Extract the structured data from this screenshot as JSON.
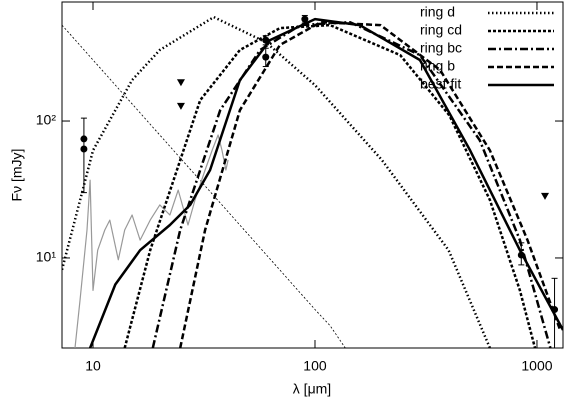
{
  "chart_data": {
    "type": "line",
    "xlabel": "λ [μm]",
    "ylabel": "Fν [mJy]",
    "xscale": "log",
    "yscale": "log",
    "xlim": [
      7.25,
      1310
    ],
    "ylim": [
      2.2,
      740
    ],
    "xticks": [
      10,
      100,
      1000
    ],
    "yticks": [
      {
        "value": 10,
        "label": "10¹"
      },
      {
        "value": 100,
        "label": "10²"
      }
    ],
    "legend": "upper right",
    "series": [
      {
        "name": "ring d",
        "color": "#000000",
        "dash": "1.5 2.5",
        "width": 2.5,
        "x": [
          7.25,
          10,
          15,
          20,
          35,
          60,
          100,
          200,
          400,
          614
        ],
        "values": [
          8.2,
          61,
          199,
          330,
          574,
          377,
          183,
          52,
          11.4,
          2.2
        ]
      },
      {
        "name": "ring cd",
        "color": "#000000",
        "dash": "3 2",
        "width": 2.5,
        "x": [
          13.9,
          18.1,
          30.4,
          45.9,
          69.5,
          117,
          242,
          403,
          614,
          838,
          980
        ],
        "values": [
          2.2,
          11.4,
          142,
          330,
          477,
          502,
          303,
          110,
          26.5,
          5.8,
          2.2
        ]
      },
      {
        "name": "ring bc",
        "color": "#000000",
        "dash": "8 3 2 3",
        "width": 2.5,
        "x": [
          18.6,
          24.7,
          37.4,
          56.6,
          86,
          144,
          297,
          552,
          838,
          1150
        ],
        "values": [
          2.2,
          16,
          120,
          330,
          502,
          527,
          303,
          72.6,
          13.5,
          2.2
        ]
      },
      {
        "name": "ring b",
        "color": "#000000",
        "dash": "6 3",
        "width": 2.5,
        "x": [
          24.7,
          32,
          45.9,
          69.5,
          106,
          197,
          366,
          614,
          906,
          1270
        ],
        "values": [
          2.2,
          16,
          120,
          359,
          527,
          502,
          236,
          61,
          13.5,
          3
        ]
      },
      {
        "name": "best fit",
        "color": "#000000",
        "dash": "none",
        "width": 2.5,
        "x": [
          9.7,
          12.6,
          16.3,
          22.2,
          27.4,
          33.7,
          45.9,
          62.7,
          100,
          159,
          297,
          500,
          838,
          1310
        ],
        "values": [
          2.2,
          6.4,
          11.4,
          17.4,
          24.4,
          43.9,
          199,
          390,
          555,
          502,
          279,
          61,
          11.4,
          2.98
        ]
      }
    ],
    "extra_lines": [
      {
        "color": "#000000",
        "dash": "2 2",
        "width": 0.8,
        "x": [
          7.25,
          100,
          117,
          137
        ],
        "values": [
          502,
          4.2,
          3.2,
          2.2
        ]
      },
      {
        "color": "#999999",
        "dash": "none",
        "width": 1.2,
        "x": [
          8.3,
          8.74,
          9.4,
          9.7,
          10,
          10.5,
          11.3,
          11.9,
          13,
          13.9,
          15,
          16.3,
          18.1,
          20,
          22.2,
          24.2,
          26.8,
          28.8,
          32,
          34.4,
          36.6,
          38.1,
          39.7,
          40.6
        ],
        "values": [
          2.2,
          4.9,
          16,
          37,
          5.8,
          11.4,
          16,
          18.9,
          9.7,
          16,
          20.6,
          13.5,
          18.9,
          24.4,
          20.6,
          31.3,
          17.4,
          26.5,
          43.9,
          61,
          79,
          61,
          43.9,
          52
        ]
      }
    ],
    "points": {
      "color": "#000000",
      "x": [
        9.1,
        9.1,
        60,
        60,
        90,
        850,
        1200
      ],
      "values": [
        74,
        62.5,
        390,
        293,
        555,
        10.5,
        4.2
      ],
      "ylow": [
        30,
        null,
        360,
        250,
        520,
        8.9,
        2.2
      ],
      "yhigh": [
        105,
        null,
        420,
        340,
        590,
        12.9,
        7.1
      ]
    },
    "upper_limits": {
      "color": "#000000",
      "x": [
        24.9,
        24.9,
        1087
      ],
      "values": [
        192,
        129,
        28.4
      ]
    }
  }
}
